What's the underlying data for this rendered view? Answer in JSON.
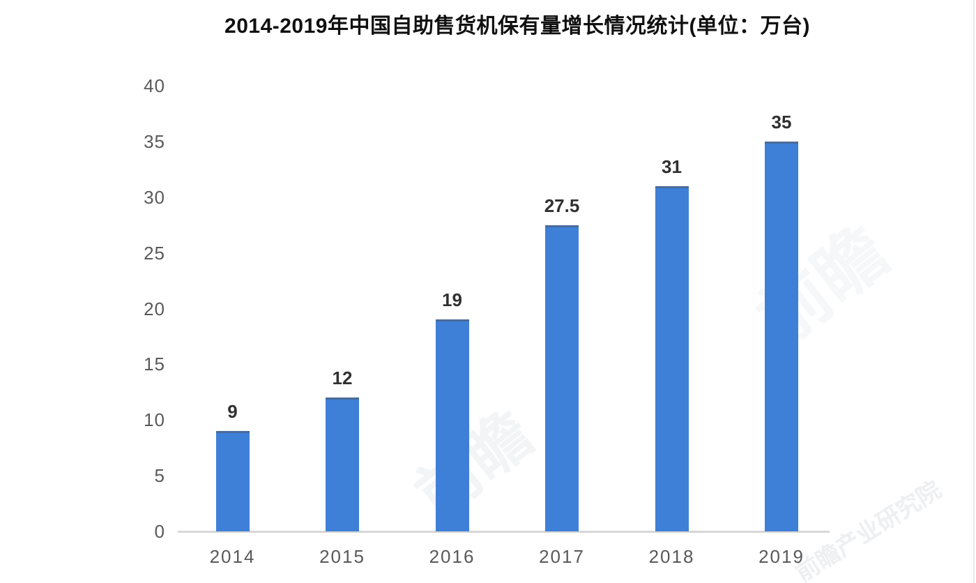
{
  "chart_data": {
    "type": "bar",
    "title": "2014-2019年中国自助售货机保有量增长情况统计(单位：万台)",
    "unit": "万台",
    "categories": [
      "2014",
      "2015",
      "2016",
      "2017",
      "2018",
      "2019"
    ],
    "values": [
      9,
      12,
      19,
      27.5,
      31,
      35
    ],
    "data_labels": [
      "9",
      "12",
      "19",
      "27.5",
      "31",
      "35"
    ],
    "xlabel": "",
    "ylabel": "",
    "ylim": [
      0,
      40
    ],
    "yticks": [
      0,
      5,
      10,
      15,
      20,
      25,
      30,
      35,
      40
    ],
    "grid": false,
    "legend_position": "none",
    "colors": {
      "bar_fill": "#3e80d8",
      "bar_top_cap": "#4a6b99",
      "axis_line": "#d7d7d7",
      "y_tick_text": "#595959",
      "x_tick_text": "#595959",
      "value_label_text": "#303030",
      "title_text": "#101010",
      "background": "#ffffff"
    }
  },
  "watermark": {
    "text_large": "前瞻",
    "text_small": "前瞻产业研究院"
  }
}
